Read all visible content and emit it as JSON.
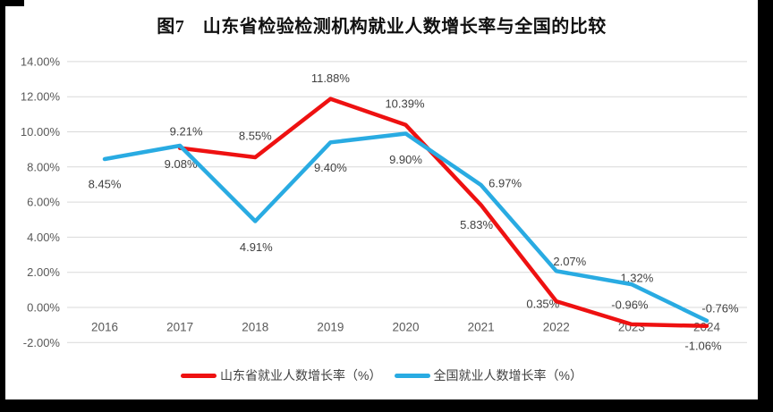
{
  "title": "图7　山东省检验检测机构就业人数增长率与全国的比较",
  "chart_data": {
    "type": "line",
    "title": "图7　山东省检验检测机构就业人数增长率与全国的比较",
    "categories": [
      "2016",
      "2017",
      "2018",
      "2019",
      "2020",
      "2021",
      "2022",
      "2023",
      "2024"
    ],
    "series": [
      {
        "name": "山东省就业人数增长率（%）",
        "color": "#ee1111",
        "values": [
          null,
          9.08,
          8.55,
          11.88,
          10.39,
          5.83,
          0.35,
          -0.96,
          -1.06
        ],
        "labels": [
          "",
          "9.08%",
          "8.55%",
          "11.88%",
          "10.39%",
          "5.83%",
          "0.35%",
          "-0.96%",
          "-1.06%"
        ],
        "label_offsets": [
          [
            0,
            0
          ],
          [
            1,
            18
          ],
          [
            0,
            -24
          ],
          [
            0,
            -23
          ],
          [
            -1,
            -24
          ],
          [
            -5,
            22
          ],
          [
            -15,
            3
          ],
          [
            -2,
            -22
          ],
          [
            -4,
            22
          ]
        ]
      },
      {
        "name": "全国就业人数增长率（%）",
        "color": "#29abe2",
        "values": [
          8.45,
          9.21,
          4.91,
          9.4,
          9.9,
          6.97,
          2.07,
          1.32,
          -0.76
        ],
        "labels": [
          "8.45%",
          "9.21%",
          "4.91%",
          "9.40%",
          "9.90%",
          "6.97%",
          "2.07%",
          "1.32%",
          "-0.76%"
        ],
        "label_offsets": [
          [
            0,
            28
          ],
          [
            7,
            -16
          ],
          [
            1,
            29
          ],
          [
            0,
            28
          ],
          [
            0,
            29
          ],
          [
            27,
            -2
          ],
          [
            15,
            -11
          ],
          [
            6,
            -7
          ],
          [
            15,
            -14
          ]
        ]
      }
    ],
    "y_axis": {
      "min": -2,
      "max": 14,
      "step": 2,
      "tick_labels": [
        "-2.00%",
        "0.00%",
        "2.00%",
        "4.00%",
        "6.00%",
        "8.00%",
        "10.00%",
        "12.00%",
        "14.00%"
      ]
    },
    "x_axis": {
      "tick_labels": [
        "2016",
        "2017",
        "2018",
        "2019",
        "2020",
        "2021",
        "2022",
        "2023",
        "2024"
      ]
    },
    "grid": true,
    "legend_position": "bottom",
    "colors": {
      "grid": "#d9d9d9",
      "axis_text": "#595959",
      "data_label_text": "#404040"
    }
  },
  "legend": {
    "items": [
      {
        "label": "山东省就业人数增长率（%）",
        "color": "#ee1111"
      },
      {
        "label": "全国就业人数增长率（%）",
        "color": "#29abe2"
      }
    ]
  }
}
